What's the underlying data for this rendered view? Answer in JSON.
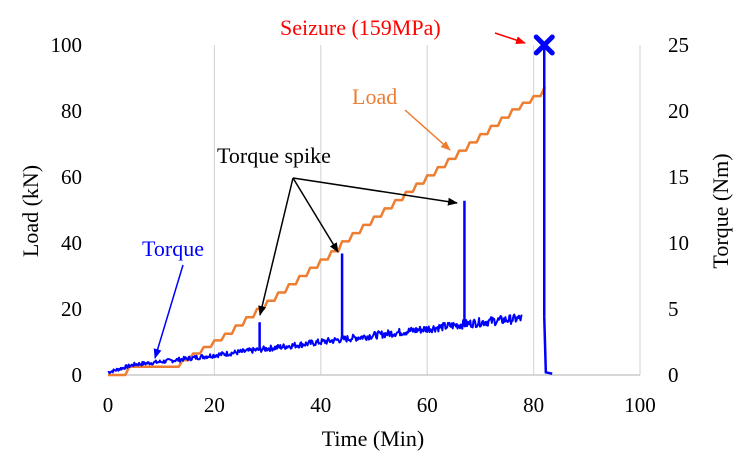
{
  "chart_data": {
    "type": "line",
    "title": "",
    "xlabel": "Time (Min)",
    "ylabel": "Load (kN)",
    "y2label": "Torque (Nm)",
    "xlim": [
      0,
      100
    ],
    "ylim": [
      0,
      100
    ],
    "y2lim": [
      0,
      25
    ],
    "xticks": [
      "0",
      "20",
      "40",
      "60",
      "80",
      "100"
    ],
    "yticks": [
      "0",
      "20",
      "40",
      "60",
      "80",
      "100"
    ],
    "y2ticks": [
      "0",
      "5",
      "10",
      "15",
      "20",
      "25"
    ],
    "grid": "vertical",
    "legend": "none",
    "colors": {
      "load": "#ED7D31",
      "torque": "#0000FF",
      "seizure": "#FF0000",
      "marker": "#0000FF"
    },
    "series": [
      {
        "name": "Load",
        "axis": "left",
        "style": "staircase",
        "x": [
          0,
          4,
          6,
          8,
          10,
          12,
          14,
          16,
          18,
          20,
          22,
          24,
          26,
          28,
          30,
          32,
          34,
          36,
          38,
          40,
          42,
          44,
          46,
          48,
          50,
          52,
          54,
          56,
          58,
          60,
          62,
          64,
          66,
          68,
          70,
          72,
          74,
          76,
          78,
          80,
          82
        ],
        "values": [
          0,
          2.5,
          2.5,
          2.5,
          2.5,
          2.5,
          4.5,
          6.5,
          8.5,
          10.5,
          12.5,
          15,
          17.5,
          20,
          22.5,
          25,
          27.5,
          30,
          32.5,
          35,
          37.5,
          40.5,
          43,
          45.5,
          48,
          50.5,
          53,
          55.5,
          58,
          60.5,
          63,
          65.5,
          68,
          70.5,
          73,
          75.5,
          78,
          80.5,
          82.5,
          84.5,
          87
        ]
      },
      {
        "name": "Torque",
        "axis": "right",
        "style": "noisy-line",
        "x": [
          0,
          5,
          10,
          20,
          30,
          40,
          50,
          60,
          70,
          78,
          82,
          82.3,
          83.5
        ],
        "values": [
          0.2,
          0.8,
          1.0,
          1.5,
          2.0,
          2.5,
          3.0,
          3.5,
          4.0,
          4.3,
          4.4,
          0.2,
          0.1
        ],
        "spikes": [
          {
            "x": 28.5,
            "value": 4.0
          },
          {
            "x": 44.0,
            "value": 9.2
          },
          {
            "x": 67.0,
            "value": 13.2
          },
          {
            "x": 82.0,
            "value": 25.0
          }
        ]
      }
    ],
    "annotations": {
      "seizure": {
        "label": "Seizure (159MPa)",
        "x": 82,
        "y2": 25
      },
      "load_label": "Load",
      "torque_label": "Torque",
      "spike_label": "Torque spike"
    }
  }
}
